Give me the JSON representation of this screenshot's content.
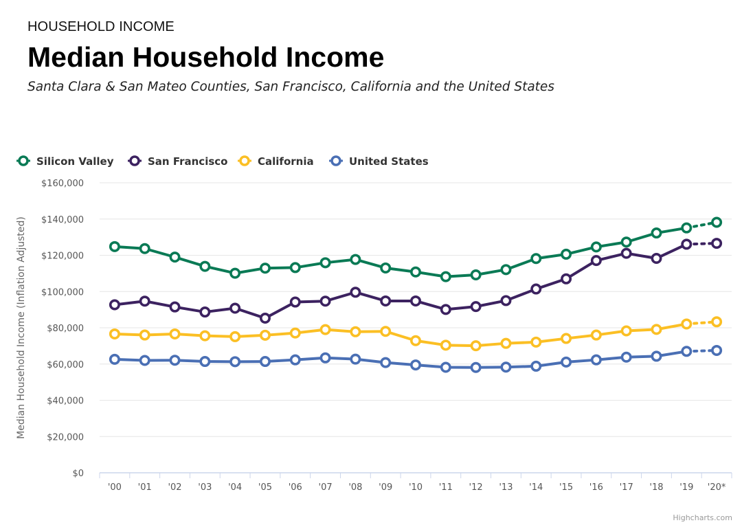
{
  "header": {
    "kicker": "HOUSEHOLD INCOME",
    "title": "Median Household Income",
    "subtitle": "Santa Clara & San Mateo Counties, San Francisco, California and the United States"
  },
  "credit": "Highcharts.com",
  "chart_data": {
    "type": "line",
    "ylabel": "Median Household Income (Inflation Adjusted)",
    "xlabel": "",
    "ylim": [
      0,
      160000
    ],
    "yticks": [
      0,
      20000,
      40000,
      60000,
      80000,
      100000,
      120000,
      140000,
      160000
    ],
    "ytick_labels": [
      "$0",
      "$20,000",
      "$40,000",
      "$60,000",
      "$80,000",
      "$100,000",
      "$120,000",
      "$140,000",
      "$160,000"
    ],
    "categories": [
      "'00",
      "'01",
      "'02",
      "'03",
      "'04",
      "'05",
      "'06",
      "'07",
      "'08",
      "'09",
      "'10",
      "'11",
      "'12",
      "'13",
      "'14",
      "'15",
      "'16",
      "'17",
      "'18",
      "'19",
      "'20*"
    ],
    "dotted_last_segment": true,
    "grid": true,
    "legend_position": "top-left",
    "series": [
      {
        "name": "Silicon Valley",
        "color": "#0a7a55",
        "values": [
          124800,
          123700,
          119000,
          113900,
          110100,
          112900,
          113200,
          115900,
          117700,
          113000,
          110800,
          108200,
          109200,
          112100,
          118200,
          120600,
          124600,
          127300,
          132300,
          135100,
          138200
        ]
      },
      {
        "name": "San Francisco",
        "color": "#3c2260",
        "values": [
          92700,
          94700,
          91500,
          88700,
          90800,
          85300,
          94200,
          94700,
          99600,
          94800,
          94800,
          90100,
          91700,
          95000,
          101400,
          107000,
          117100,
          121100,
          118300,
          126100,
          126600
        ]
      },
      {
        "name": "California",
        "color": "#fbbf24",
        "values": [
          76600,
          76000,
          76600,
          75600,
          75100,
          75900,
          77100,
          79000,
          77800,
          78000,
          72900,
          70400,
          70100,
          71400,
          72100,
          74100,
          76000,
          78300,
          79100,
          82100,
          83300
        ]
      },
      {
        "name": "United States",
        "color": "#4a6fb4",
        "values": [
          62600,
          62000,
          62100,
          61400,
          61300,
          61400,
          62300,
          63400,
          62700,
          60800,
          59500,
          58200,
          58100,
          58300,
          58800,
          61100,
          62300,
          63800,
          64300,
          67000,
          67500
        ]
      }
    ]
  }
}
